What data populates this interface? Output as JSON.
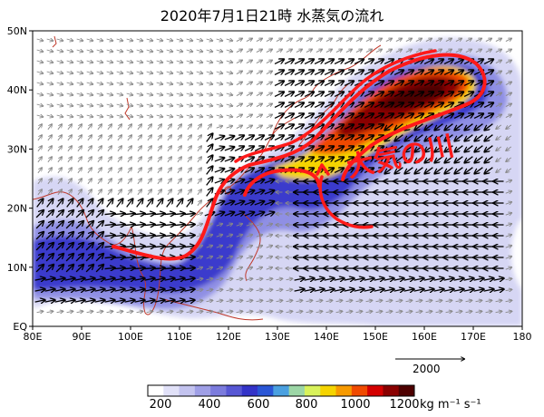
{
  "title": "2020年7月1日21時 水蒸気の流れ",
  "annotation": "大気の川",
  "x_ticks": [
    "80E",
    "90E",
    "100E",
    "110E",
    "120E",
    "130E",
    "140E",
    "150E",
    "160E",
    "170E",
    "180"
  ],
  "y_ticks": [
    "50N",
    "40N",
    "30N",
    "20N",
    "10N",
    "EQ"
  ],
  "reference_vector": {
    "label": "2000"
  },
  "colorbar": {
    "ticks": [
      "200",
      "400",
      "600",
      "800",
      "1000",
      "1200"
    ],
    "unit": "kg m⁻¹ s⁻¹",
    "colors": [
      "#ffffff",
      "#e1e1f8",
      "#c3c3ef",
      "#9f9fe6",
      "#7b7bdd",
      "#5757d4",
      "#3333c8",
      "#2a56d6",
      "#4aa0e0",
      "#9cd6a6",
      "#d9f25b",
      "#f5d400",
      "#f79a00",
      "#f04a00",
      "#d40000",
      "#8a0000",
      "#4d0000"
    ]
  },
  "colors": {
    "arrow_strong": "#000000",
    "arrow_weak": "#888888",
    "coast": "#c0392b",
    "highlight": "#ff1a1a"
  }
}
